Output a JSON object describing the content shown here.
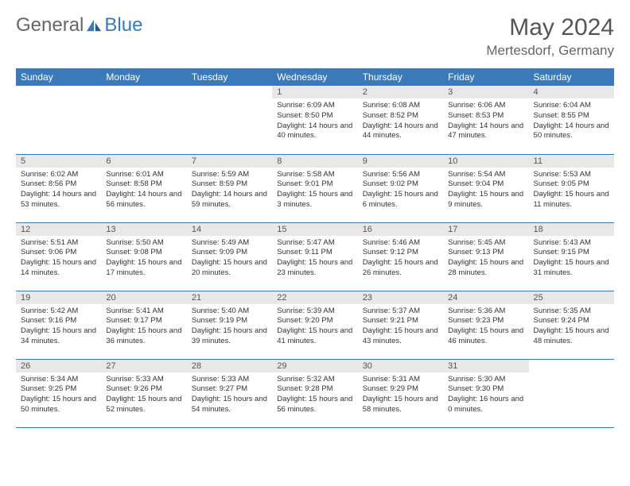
{
  "brand": {
    "part1": "General",
    "part2": "Blue",
    "accent_color": "#3a7ab8"
  },
  "title": "May 2024",
  "location": "Mertesdorf, Germany",
  "weekdays": [
    "Sunday",
    "Monday",
    "Tuesday",
    "Wednesday",
    "Thursday",
    "Friday",
    "Saturday"
  ],
  "colors": {
    "header_bg": "#3a7ab8",
    "header_text": "#ffffff",
    "daynum_bg": "#e8e8e8",
    "daynum_text": "#555555",
    "body_text": "#333333",
    "border": "#3a7ab8"
  },
  "weeks": [
    [
      null,
      null,
      null,
      {
        "n": "1",
        "sunrise": "6:09 AM",
        "sunset": "8:50 PM",
        "daylight": "14 hours and 40 minutes."
      },
      {
        "n": "2",
        "sunrise": "6:08 AM",
        "sunset": "8:52 PM",
        "daylight": "14 hours and 44 minutes."
      },
      {
        "n": "3",
        "sunrise": "6:06 AM",
        "sunset": "8:53 PM",
        "daylight": "14 hours and 47 minutes."
      },
      {
        "n": "4",
        "sunrise": "6:04 AM",
        "sunset": "8:55 PM",
        "daylight": "14 hours and 50 minutes."
      }
    ],
    [
      {
        "n": "5",
        "sunrise": "6:02 AM",
        "sunset": "8:56 PM",
        "daylight": "14 hours and 53 minutes."
      },
      {
        "n": "6",
        "sunrise": "6:01 AM",
        "sunset": "8:58 PM",
        "daylight": "14 hours and 56 minutes."
      },
      {
        "n": "7",
        "sunrise": "5:59 AM",
        "sunset": "8:59 PM",
        "daylight": "14 hours and 59 minutes."
      },
      {
        "n": "8",
        "sunrise": "5:58 AM",
        "sunset": "9:01 PM",
        "daylight": "15 hours and 3 minutes."
      },
      {
        "n": "9",
        "sunrise": "5:56 AM",
        "sunset": "9:02 PM",
        "daylight": "15 hours and 6 minutes."
      },
      {
        "n": "10",
        "sunrise": "5:54 AM",
        "sunset": "9:04 PM",
        "daylight": "15 hours and 9 minutes."
      },
      {
        "n": "11",
        "sunrise": "5:53 AM",
        "sunset": "9:05 PM",
        "daylight": "15 hours and 11 minutes."
      }
    ],
    [
      {
        "n": "12",
        "sunrise": "5:51 AM",
        "sunset": "9:06 PM",
        "daylight": "15 hours and 14 minutes."
      },
      {
        "n": "13",
        "sunrise": "5:50 AM",
        "sunset": "9:08 PM",
        "daylight": "15 hours and 17 minutes."
      },
      {
        "n": "14",
        "sunrise": "5:49 AM",
        "sunset": "9:09 PM",
        "daylight": "15 hours and 20 minutes."
      },
      {
        "n": "15",
        "sunrise": "5:47 AM",
        "sunset": "9:11 PM",
        "daylight": "15 hours and 23 minutes."
      },
      {
        "n": "16",
        "sunrise": "5:46 AM",
        "sunset": "9:12 PM",
        "daylight": "15 hours and 26 minutes."
      },
      {
        "n": "17",
        "sunrise": "5:45 AM",
        "sunset": "9:13 PM",
        "daylight": "15 hours and 28 minutes."
      },
      {
        "n": "18",
        "sunrise": "5:43 AM",
        "sunset": "9:15 PM",
        "daylight": "15 hours and 31 minutes."
      }
    ],
    [
      {
        "n": "19",
        "sunrise": "5:42 AM",
        "sunset": "9:16 PM",
        "daylight": "15 hours and 34 minutes."
      },
      {
        "n": "20",
        "sunrise": "5:41 AM",
        "sunset": "9:17 PM",
        "daylight": "15 hours and 36 minutes."
      },
      {
        "n": "21",
        "sunrise": "5:40 AM",
        "sunset": "9:19 PM",
        "daylight": "15 hours and 39 minutes."
      },
      {
        "n": "22",
        "sunrise": "5:39 AM",
        "sunset": "9:20 PM",
        "daylight": "15 hours and 41 minutes."
      },
      {
        "n": "23",
        "sunrise": "5:37 AM",
        "sunset": "9:21 PM",
        "daylight": "15 hours and 43 minutes."
      },
      {
        "n": "24",
        "sunrise": "5:36 AM",
        "sunset": "9:23 PM",
        "daylight": "15 hours and 46 minutes."
      },
      {
        "n": "25",
        "sunrise": "5:35 AM",
        "sunset": "9:24 PM",
        "daylight": "15 hours and 48 minutes."
      }
    ],
    [
      {
        "n": "26",
        "sunrise": "5:34 AM",
        "sunset": "9:25 PM",
        "daylight": "15 hours and 50 minutes."
      },
      {
        "n": "27",
        "sunrise": "5:33 AM",
        "sunset": "9:26 PM",
        "daylight": "15 hours and 52 minutes."
      },
      {
        "n": "28",
        "sunrise": "5:33 AM",
        "sunset": "9:27 PM",
        "daylight": "15 hours and 54 minutes."
      },
      {
        "n": "29",
        "sunrise": "5:32 AM",
        "sunset": "9:28 PM",
        "daylight": "15 hours and 56 minutes."
      },
      {
        "n": "30",
        "sunrise": "5:31 AM",
        "sunset": "9:29 PM",
        "daylight": "15 hours and 58 minutes."
      },
      {
        "n": "31",
        "sunrise": "5:30 AM",
        "sunset": "9:30 PM",
        "daylight": "16 hours and 0 minutes."
      },
      null
    ]
  ],
  "labels": {
    "sunrise": "Sunrise:",
    "sunset": "Sunset:",
    "daylight": "Daylight:"
  }
}
